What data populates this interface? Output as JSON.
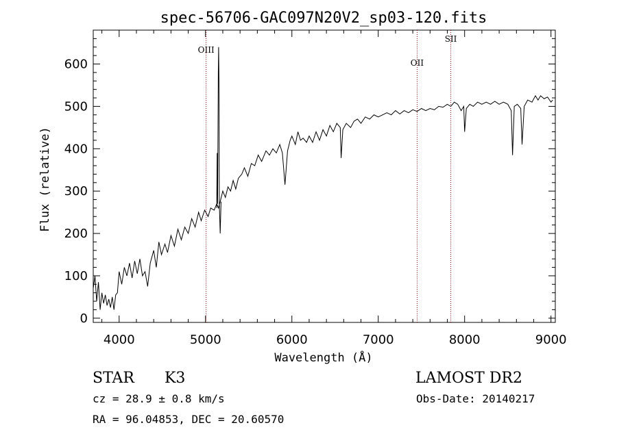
{
  "chart_data": {
    "type": "line",
    "title": "spec-56706-GAC097N20V2_sp03-120.fits",
    "xlabel": "Wavelength (Å)",
    "ylabel": "Flux (relative)",
    "xlim": [
      3700,
      9050
    ],
    "ylim": [
      -10,
      680
    ],
    "x_ticks": [
      4000,
      5000,
      6000,
      7000,
      8000,
      9000
    ],
    "y_ticks": [
      0,
      100,
      200,
      300,
      400,
      500,
      600
    ],
    "grid": false,
    "series": [
      {
        "points": [
          [
            3700,
            70
          ],
          [
            3720,
            100
          ],
          [
            3740,
            40
          ],
          [
            3760,
            85
          ],
          [
            3780,
            20
          ],
          [
            3800,
            60
          ],
          [
            3820,
            35
          ],
          [
            3840,
            55
          ],
          [
            3860,
            30
          ],
          [
            3880,
            45
          ],
          [
            3900,
            25
          ],
          [
            3920,
            50
          ],
          [
            3940,
            20
          ],
          [
            3960,
            55
          ],
          [
            3980,
            60
          ],
          [
            4000,
            110
          ],
          [
            4030,
            80
          ],
          [
            4060,
            120
          ],
          [
            4090,
            100
          ],
          [
            4120,
            130
          ],
          [
            4150,
            95
          ],
          [
            4180,
            135
          ],
          [
            4210,
            105
          ],
          [
            4240,
            140
          ],
          [
            4270,
            100
          ],
          [
            4300,
            110
          ],
          [
            4330,
            75
          ],
          [
            4360,
            130
          ],
          [
            4400,
            160
          ],
          [
            4430,
            120
          ],
          [
            4460,
            180
          ],
          [
            4490,
            150
          ],
          [
            4530,
            175
          ],
          [
            4560,
            155
          ],
          [
            4600,
            195
          ],
          [
            4640,
            170
          ],
          [
            4680,
            210
          ],
          [
            4720,
            185
          ],
          [
            4760,
            215
          ],
          [
            4800,
            200
          ],
          [
            4840,
            235
          ],
          [
            4880,
            215
          ],
          [
            4920,
            250
          ],
          [
            4950,
            230
          ],
          [
            4990,
            255
          ],
          [
            5030,
            240
          ],
          [
            5060,
            260
          ],
          [
            5100,
            255
          ],
          [
            5130,
            270
          ],
          [
            5150,
            260
          ],
          [
            5170,
            275
          ],
          [
            5200,
            300
          ],
          [
            5230,
            285
          ],
          [
            5260,
            310
          ],
          [
            5290,
            300
          ],
          [
            5320,
            325
          ],
          [
            5350,
            305
          ],
          [
            5380,
            330
          ],
          [
            5420,
            340
          ],
          [
            5450,
            355
          ],
          [
            5490,
            335
          ],
          [
            5530,
            365
          ],
          [
            5570,
            360
          ],
          [
            5610,
            385
          ],
          [
            5650,
            370
          ],
          [
            5700,
            395
          ],
          [
            5740,
            385
          ],
          [
            5780,
            400
          ],
          [
            5820,
            390
          ],
          [
            5860,
            410
          ],
          [
            5890,
            390
          ],
          [
            5920,
            315
          ],
          [
            5950,
            395
          ],
          [
            5980,
            420
          ],
          [
            6000,
            430
          ],
          [
            6040,
            410
          ],
          [
            6070,
            440
          ],
          [
            6100,
            420
          ],
          [
            6130,
            425
          ],
          [
            6170,
            415
          ],
          [
            6200,
            430
          ],
          [
            6240,
            415
          ],
          [
            6280,
            440
          ],
          [
            6320,
            420
          ],
          [
            6360,
            445
          ],
          [
            6400,
            430
          ],
          [
            6440,
            455
          ],
          [
            6480,
            440
          ],
          [
            6520,
            460
          ],
          [
            6560,
            450
          ],
          [
            6570,
            378
          ],
          [
            6590,
            445
          ],
          [
            6630,
            460
          ],
          [
            6680,
            450
          ],
          [
            6720,
            465
          ],
          [
            6760,
            470
          ],
          [
            6800,
            460
          ],
          [
            6850,
            475
          ],
          [
            6900,
            470
          ],
          [
            6950,
            480
          ],
          [
            7000,
            475
          ],
          [
            7050,
            480
          ],
          [
            7100,
            485
          ],
          [
            7150,
            480
          ],
          [
            7200,
            490
          ],
          [
            7250,
            482
          ],
          [
            7300,
            490
          ],
          [
            7350,
            485
          ],
          [
            7400,
            492
          ],
          [
            7450,
            488
          ],
          [
            7500,
            495
          ],
          [
            7550,
            490
          ],
          [
            7600,
            495
          ],
          [
            7650,
            492
          ],
          [
            7700,
            500
          ],
          [
            7750,
            498
          ],
          [
            7800,
            505
          ],
          [
            7840,
            500
          ],
          [
            7880,
            510
          ],
          [
            7920,
            505
          ],
          [
            7960,
            490
          ],
          [
            7990,
            500
          ],
          [
            8000,
            440
          ],
          [
            8020,
            495
          ],
          [
            8060,
            505
          ],
          [
            8100,
            500
          ],
          [
            8150,
            510
          ],
          [
            8200,
            505
          ],
          [
            8250,
            510
          ],
          [
            8300,
            505
          ],
          [
            8350,
            512
          ],
          [
            8400,
            505
          ],
          [
            8450,
            510
          ],
          [
            8500,
            505
          ],
          [
            8540,
            490
          ],
          [
            8555,
            385
          ],
          [
            8575,
            500
          ],
          [
            8610,
            505
          ],
          [
            8650,
            495
          ],
          [
            8665,
            410
          ],
          [
            8690,
            500
          ],
          [
            8730,
            515
          ],
          [
            8780,
            510
          ],
          [
            8820,
            525
          ],
          [
            8850,
            515
          ],
          [
            8880,
            525
          ],
          [
            8920,
            518
          ],
          [
            8960,
            522
          ],
          [
            9000,
            510
          ],
          [
            9020,
            515
          ]
        ]
      },
      {
        "points": [
          [
            5130,
            260
          ],
          [
            5135,
            390
          ],
          [
            5140,
            270
          ],
          [
            5148,
            580
          ],
          [
            5152,
            640
          ],
          [
            5156,
            560
          ],
          [
            5160,
            270
          ],
          [
            5170,
            200
          ],
          [
            5180,
            275
          ]
        ]
      }
    ],
    "lines": [
      {
        "label": "OIII",
        "x": 5007
      },
      {
        "label": "OII",
        "x": 7450
      },
      {
        "label": "SII",
        "x": 7840
      }
    ]
  },
  "footer": {
    "object_type": "STAR",
    "subclass": "K3",
    "survey": "LAMOST DR2",
    "redshift": "cz = 28.9 ± 0.8 km/s",
    "obs_date": "Obs-Date: 20140217",
    "coords": "RA =  96.04853, DEC =  20.60570"
  },
  "colors": {
    "spectrum": "#000000",
    "marker_lines": "#8b0000",
    "background": "#ffffff",
    "text": "#000000"
  }
}
